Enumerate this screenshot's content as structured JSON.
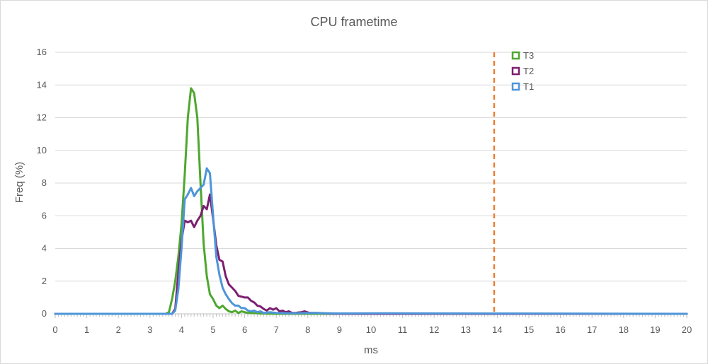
{
  "chart_data": {
    "type": "line",
    "title": "CPU frametime",
    "xlabel": "ms",
    "ylabel": "Freq (%)",
    "xlim": [
      0,
      20
    ],
    "ylim": [
      0,
      16
    ],
    "x_ticks": [
      0,
      1,
      2,
      3,
      4,
      5,
      6,
      7,
      8,
      9,
      10,
      11,
      12,
      13,
      14,
      15,
      16,
      17,
      18,
      19,
      20
    ],
    "y_ticks": [
      0,
      2,
      4,
      6,
      8,
      10,
      12,
      14,
      16
    ],
    "grid": "horizontal",
    "legend_position": "top-right",
    "reference_line": {
      "x": 13.9,
      "style": "dashed",
      "color": "#ed7d31"
    },
    "series": [
      {
        "name": "T3",
        "color": "#4ea72e",
        "x": [
          0,
          3.5,
          3.6,
          3.7,
          3.8,
          3.9,
          4.0,
          4.1,
          4.2,
          4.3,
          4.4,
          4.5,
          4.6,
          4.7,
          4.8,
          4.9,
          5.0,
          5.1,
          5.2,
          5.3,
          5.4,
          5.5,
          5.6,
          5.7,
          5.8,
          5.9,
          6.0,
          6.1,
          6.2,
          6.5,
          7.0,
          20
        ],
        "y": [
          0,
          0,
          0.1,
          0.9,
          2.0,
          3.5,
          5.5,
          8.5,
          12.0,
          13.8,
          13.5,
          12.0,
          8.0,
          4.3,
          2.3,
          1.2,
          0.9,
          0.5,
          0.35,
          0.5,
          0.3,
          0.15,
          0.1,
          0.2,
          0.05,
          0.15,
          0.1,
          0.05,
          0.05,
          0.02,
          0,
          0
        ]
      },
      {
        "name": "T2",
        "color": "#7b1f70",
        "x": [
          0,
          3.7,
          3.8,
          3.9,
          4.0,
          4.1,
          4.2,
          4.3,
          4.4,
          4.5,
          4.6,
          4.7,
          4.8,
          4.9,
          5.0,
          5.1,
          5.2,
          5.3,
          5.4,
          5.5,
          5.6,
          5.7,
          5.8,
          5.9,
          6.0,
          6.1,
          6.2,
          6.3,
          6.4,
          6.5,
          6.6,
          6.7,
          6.8,
          6.9,
          7.0,
          7.1,
          7.2,
          7.3,
          7.4,
          7.5,
          7.6,
          7.7,
          7.8,
          7.9,
          8.0,
          8.1,
          8.3,
          8.6,
          9.0,
          20
        ],
        "y": [
          0,
          0,
          0.3,
          2.5,
          4.5,
          5.7,
          5.6,
          5.7,
          5.3,
          5.7,
          6.0,
          6.6,
          6.4,
          7.3,
          5.8,
          4.2,
          3.3,
          3.2,
          2.3,
          1.8,
          1.6,
          1.4,
          1.1,
          1.05,
          1.0,
          1.0,
          0.8,
          0.7,
          0.5,
          0.45,
          0.3,
          0.2,
          0.35,
          0.25,
          0.35,
          0.15,
          0.2,
          0.1,
          0.15,
          0.05,
          0.05,
          0.08,
          0.1,
          0.15,
          0.08,
          0.05,
          0.05,
          0.02,
          0,
          0
        ]
      },
      {
        "name": "T1",
        "color": "#4e95d9",
        "x": [
          0,
          3.7,
          3.8,
          3.9,
          4.0,
          4.1,
          4.2,
          4.3,
          4.4,
          4.5,
          4.6,
          4.7,
          4.8,
          4.9,
          5.0,
          5.1,
          5.2,
          5.3,
          5.4,
          5.5,
          5.6,
          5.7,
          5.8,
          5.9,
          6.0,
          6.1,
          6.2,
          6.3,
          6.4,
          6.5,
          6.6,
          6.8,
          7.0,
          7.5,
          8.0,
          9.0,
          10.5,
          20
        ],
        "y": [
          0,
          0,
          0.2,
          1.5,
          4.0,
          7.0,
          7.3,
          7.7,
          7.2,
          7.5,
          7.7,
          7.9,
          8.9,
          8.6,
          6.0,
          3.5,
          2.4,
          1.6,
          1.2,
          0.9,
          0.65,
          0.5,
          0.5,
          0.35,
          0.35,
          0.2,
          0.15,
          0.2,
          0.1,
          0.15,
          0.05,
          0.1,
          0.05,
          0.03,
          0.05,
          0.02,
          0.03,
          0
        ]
      }
    ]
  }
}
